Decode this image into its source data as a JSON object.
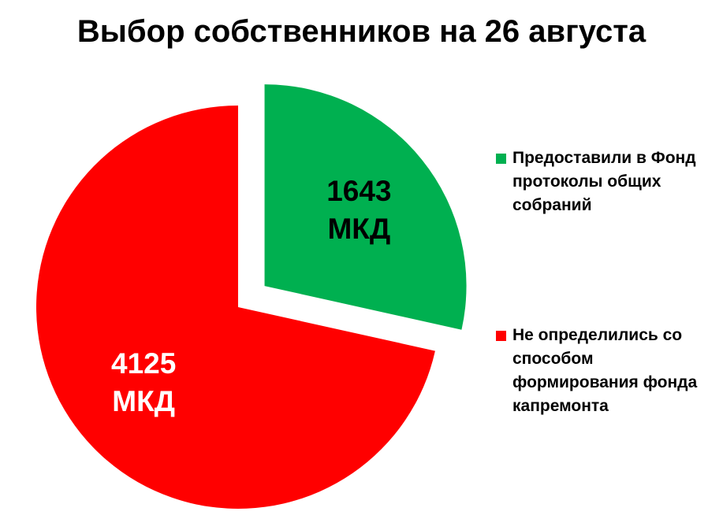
{
  "chart_data": {
    "type": "pie",
    "title": "Выбор собственников на 26 августа",
    "categories": [
      "Предоставили в Фонд протоколы общих собраний",
      "Не определились со способом формирования фонда капремонта"
    ],
    "values": [
      1643,
      4125
    ],
    "value_labels": [
      "1643 МКД",
      "4125 МКД"
    ],
    "colors": [
      "#00b050",
      "#ff0000"
    ],
    "legend": "right"
  }
}
